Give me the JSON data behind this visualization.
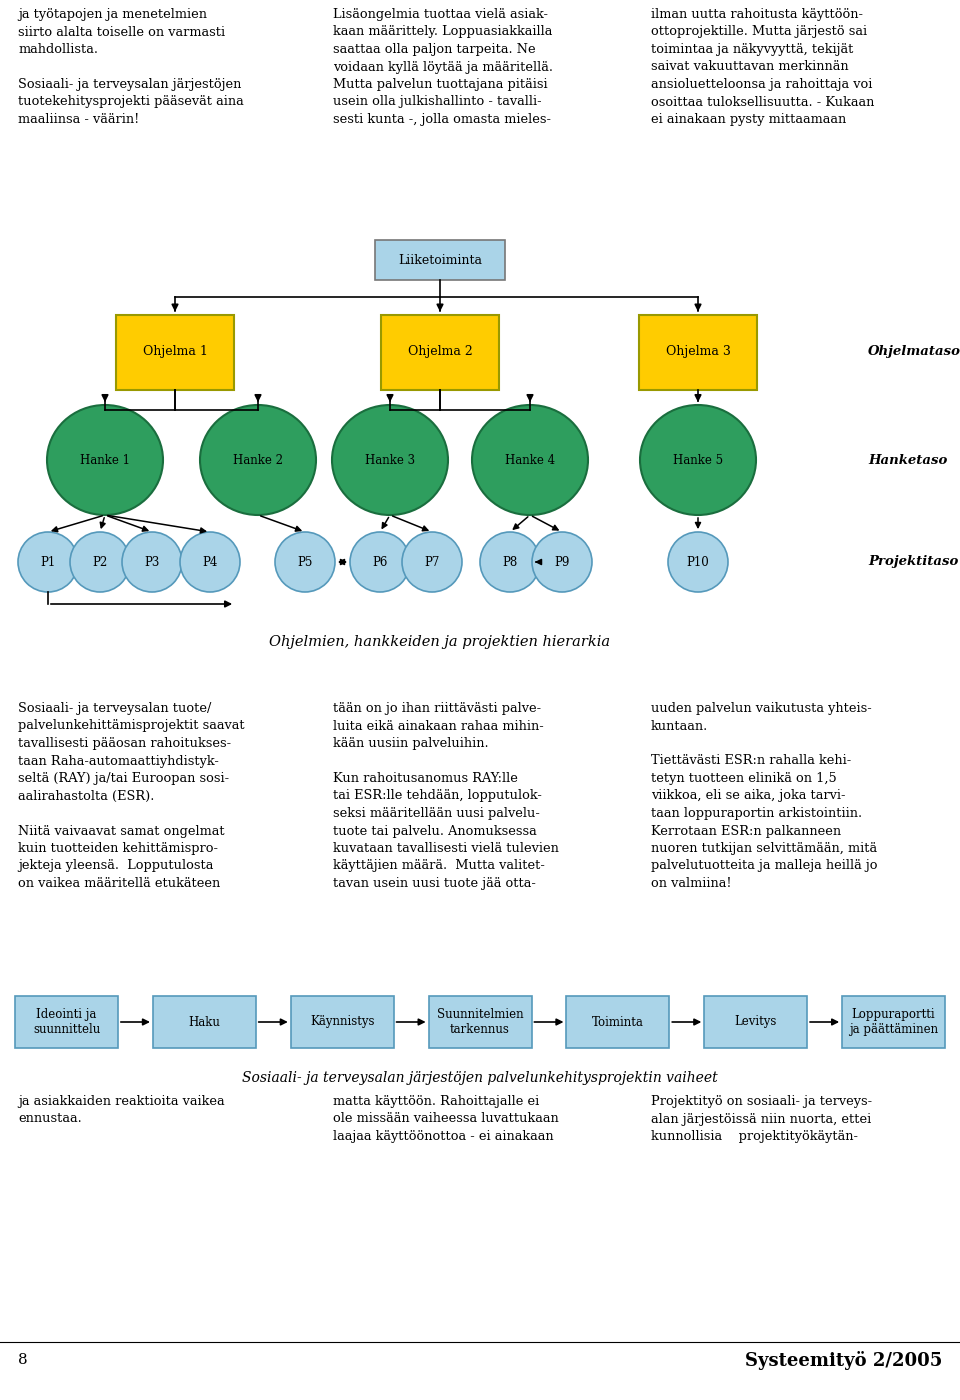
{
  "bg_color": "#ffffff",
  "text_color": "#000000",
  "top_text_col1": "ja työtapojen ja menetelmien\nsiirto alalta toiselle on varmasti\nmahdollista.\n\nSosiaali- ja terveysalan järjestöjen\ntuotekehitysprojekti pääsevät aina\nmaaliinsa - väärin!",
  "top_text_col2": "Lisäongelmia tuottaa vielä asiak-\nkaan määrittely. Loppuasiakkailla\nsaattaa olla paljon tarpeita. Ne\nvoidaan kyllä löytää ja määritellä.\nMutta palvelun tuottajana pitäisi\nusein olla julkishallinto - tavalli-\nsesti kunta -, jolla omasta mieles-",
  "top_text_col3": "ilman uutta rahoitusta käyttöön-\nottoprojektille. Mutta järjestö sai\ntoimintaa ja näkyvyyttä, tekijät\nsaivat vakuuttavan merkinnän\nansioluetteloonsa ja rahoittaja voi\nosoittaa tuloksellisuutta. - Kukaan\nei ainakaan pysty mittaamaan",
  "diagram_caption": "Ohjelmien, hankkeiden ja projektien hierarkia",
  "liiketoiminta_label": "Liiketoiminta",
  "liiketoiminta_color": "#aad4e8",
  "liiketoiminta_border": "#777777",
  "ohjelma_labels": [
    "Ohjelma 1",
    "Ohjelma 2",
    "Ohjelma 3"
  ],
  "ohjelma_color": "#ffcc00",
  "ohjelma_border": "#999900",
  "hanke_labels": [
    "Hanke 1",
    "Hanke 2",
    "Hanke 3",
    "Hanke 4",
    "Hanke 5"
  ],
  "hanke_color": "#2e9e5e",
  "hanke_border": "#1a6e3e",
  "projekti_labels": [
    "P1",
    "P2",
    "P3",
    "P4",
    "P5",
    "P6",
    "P7",
    "P8",
    "P9",
    "P10"
  ],
  "projekti_color": "#aad4e8",
  "projekti_border": "#5599bb",
  "level_labels": [
    "Ohjelmataso",
    "Hanketaso",
    "Projektitaso"
  ],
  "process_boxes": [
    "Ideointi ja\nsuunnittelu",
    "Haku",
    "Käynnistys",
    "Suunnitelmien\ntarkennus",
    "Toiminta",
    "Levitys",
    "Loppuraportti\nja päättäminen"
  ],
  "process_color": "#aad4e8",
  "process_border": "#5599bb",
  "process_caption": "Sosiaali- ja terveysalan järjestöjen palvelunkehitysprojektin vaiheet",
  "bottom_text_col1": "ja asiakkaiden reaktioita vaikea\nennustaa.",
  "bottom_text_col2": "matta käyttöön. Rahoittajalle ei\nole missään vaiheessa luvattukaan\nlaajaa käyttöönottoa - ei ainakaan",
  "bottom_text_col3": "Projektityö on sosiaali- ja terveys-\nalan järjestöissä niin nuorta, ettei\nkunnollisia    projektityökäytän-",
  "bottom_left_label": "8",
  "bottom_right_label": "Systeemityö 2/2005",
  "body_text_col1": "Sosiaali- ja terveysalan tuote/\npalvelunkehittämisprojektit saavat\ntavallisesti pääosan rahoitukses-\ntaan Raha-automaattiyhdistyk-\nseltä (RAY) ja/tai Euroopan sosi-\naalirahastolta (ESR).\n\nNiitä vaivaavat samat ongelmat\nkuin tuotteiden kehittämispro-\njekteja yleensä.  Lopputulosta\non vaikea määritellä etukäteen",
  "body_text_col2": "tään on jo ihan riittävästi palve-\nluita eikä ainakaan rahaa mihin-\nkään uusiin palveluihin.\n\nKun rahoitusanomus RAY:lle\ntai ESR:lle tehdään, lopputulok-\nseksi määritellään uusi palvelu-\ntuote tai palvelu. Anomuksessa\nkuvataan tavallisesti vielä tulevien\nkäyttäjien määrä.  Mutta valitet-\ntavan usein uusi tuote jää otta-",
  "body_text_col3": "uuden palvelun vaikutusta yhteis-\nkuntaan.\n\nTiettävästi ESR:n rahalla kehi-\ntetyn tuotteen elinikä on 1,5\nviikkoa, eli se aika, joka tarvi-\ntaan loppuraportin arkistointiin.\nKerrotaan ESR:n palkanneen\nnuoren tutkijan selvittämään, mitä\npalvelutuotteita ja malleja heillä jo\non valmiina!"
}
